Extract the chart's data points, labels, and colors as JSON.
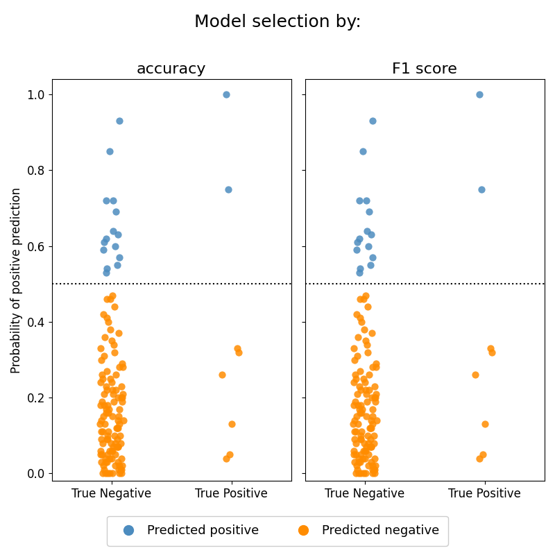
{
  "title": "Model selection by:",
  "panels": [
    "accuracy",
    "F1 score"
  ],
  "xlabel_categories": [
    "True Negative",
    "True Positive"
  ],
  "ylabel": "Probability of positive prediction",
  "threshold": 0.5,
  "color_predicted_positive": "#4C8CBF",
  "color_predicted_negative": "#FF8C00",
  "legend_labels": [
    "Predicted positive",
    "Predicted negative"
  ],
  "true_negative_blue": [
    0.85,
    0.93,
    0.69,
    0.72,
    0.72,
    0.62,
    0.61,
    0.63,
    0.64,
    0.6,
    0.59,
    0.57,
    0.55,
    0.54,
    0.53
  ],
  "true_positive_blue": [
    1.0,
    0.75
  ],
  "true_negative_orange": [
    0.47,
    0.46,
    0.46,
    0.44,
    0.42,
    0.41,
    0.4,
    0.38,
    0.37,
    0.36,
    0.35,
    0.34,
    0.33,
    0.32,
    0.31,
    0.3,
    0.29,
    0.28,
    0.28,
    0.27,
    0.26,
    0.26,
    0.25,
    0.25,
    0.24,
    0.24,
    0.23,
    0.23,
    0.22,
    0.22,
    0.22,
    0.21,
    0.21,
    0.21,
    0.2,
    0.2,
    0.2,
    0.19,
    0.19,
    0.19,
    0.18,
    0.18,
    0.18,
    0.17,
    0.17,
    0.17,
    0.16,
    0.16,
    0.15,
    0.15,
    0.15,
    0.14,
    0.14,
    0.14,
    0.13,
    0.13,
    0.13,
    0.12,
    0.12,
    0.12,
    0.11,
    0.11,
    0.11,
    0.1,
    0.1,
    0.1,
    0.09,
    0.09,
    0.09,
    0.09,
    0.08,
    0.08,
    0.08,
    0.08,
    0.07,
    0.07,
    0.07,
    0.07,
    0.06,
    0.06,
    0.06,
    0.06,
    0.05,
    0.05,
    0.05,
    0.05,
    0.04,
    0.04,
    0.04,
    0.04,
    0.03,
    0.03,
    0.03,
    0.03,
    0.02,
    0.02,
    0.02,
    0.02,
    0.01,
    0.01,
    0.01,
    0.01,
    0.0,
    0.0,
    0.0,
    0.0,
    0.0,
    0.0,
    0.0
  ],
  "true_positive_orange": [
    0.33,
    0.32,
    0.26,
    0.13,
    0.05,
    0.04
  ],
  "jitter_seed": 42,
  "marker_size": 55,
  "figsize": [
    8.0,
    8.0
  ],
  "dpi": 100,
  "title_fontsize": 18,
  "panel_title_fontsize": 16,
  "axis_label_fontsize": 12,
  "tick_fontsize": 12,
  "legend_fontsize": 13,
  "alpha": 0.85
}
